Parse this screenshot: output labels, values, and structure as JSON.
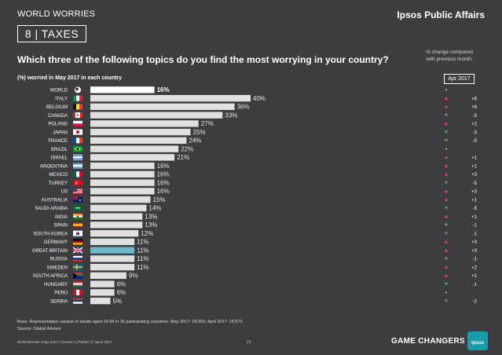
{
  "header": {
    "series_title": "WORLD WORRIES",
    "brand": "Ipsos Public Affairs",
    "topic_number": "8",
    "topic_label": "TAXES",
    "question": "Which three of the following topics do you find the most worrying in your country?",
    "change_note_line1": "% change compared",
    "change_note_line2": "with previous month:",
    "subheading": "(%) worried in May 2017 in each country",
    "comparison_period": "Apr 2017"
  },
  "colors": {
    "background": "#3d3d3f",
    "bar": "#e0e0e0",
    "world_bar": "#ffffff",
    "highlight_bar": "#6fb7cc",
    "up": "#e0475e",
    "down": "#5aa64a",
    "flat": "#c8c8c8"
  },
  "chart_data": {
    "type": "bar",
    "orientation": "horizontal",
    "categories": [
      "WORLD",
      "ITALY",
      "BELGIUM",
      "CANADA",
      "POLAND",
      "JAPAN",
      "FRANCE",
      "BRAZIL",
      "ISRAEL",
      "ARGENTINA",
      "MEXICO",
      "TURKEY",
      "US",
      "AUSTRALIA",
      "SAUDI ARABIA",
      "INDIA",
      "SPAIN",
      "SOUTH KOREA",
      "GERMANY",
      "GREAT BRITAIN",
      "RUSSIA",
      "SWEDEN",
      "SOUTH AFRICA",
      "HUNGARY",
      "PERU",
      "SERBIA"
    ],
    "values": [
      16,
      40,
      36,
      33,
      27,
      25,
      24,
      22,
      21,
      16,
      16,
      16,
      16,
      15,
      14,
      13,
      13,
      12,
      11,
      11,
      11,
      11,
      9,
      6,
      6,
      5
    ],
    "value_labels": [
      "16%",
      "40%",
      "36%",
      "33%",
      "27%",
      "25%",
      "24%",
      "22%",
      "21%",
      "16%",
      "16%",
      "16%",
      "16%",
      "15%",
      "14%",
      "13%",
      "13%",
      "12%",
      "11%",
      "11%",
      "11%",
      "11%",
      "9%",
      "6%",
      "6%",
      "5%"
    ],
    "change_labels": [
      "",
      "+6",
      "+6",
      "-3",
      "+2",
      "-3",
      "-5",
      "",
      "+1",
      "+1",
      "+3",
      "-5",
      "+3",
      "+1",
      "-5",
      "+1",
      "-1",
      "-1",
      "+3",
      "+3",
      "-1",
      "+2",
      "+1",
      "-1",
      "",
      "-2"
    ],
    "change_direction": [
      "flat",
      "up",
      "up",
      "down",
      "up",
      "down",
      "down",
      "flat",
      "up",
      "up",
      "up",
      "down",
      "up",
      "up",
      "down",
      "up",
      "down",
      "down",
      "up",
      "up",
      "down",
      "up",
      "up",
      "down",
      "flat",
      "down"
    ],
    "highlight": [
      "world",
      "normal",
      "normal",
      "normal",
      "normal",
      "normal",
      "normal",
      "normal",
      "normal",
      "normal",
      "normal",
      "normal",
      "normal",
      "normal",
      "normal",
      "normal",
      "normal",
      "normal",
      "normal",
      "highlight",
      "normal",
      "normal",
      "normal",
      "normal",
      "normal",
      "normal"
    ],
    "flag_icons": [
      "globe-icon",
      "italy-flag-icon",
      "belgium-flag-icon",
      "canada-flag-icon",
      "poland-flag-icon",
      "japan-flag-icon",
      "france-flag-icon",
      "brazil-flag-icon",
      "israel-flag-icon",
      "argentina-flag-icon",
      "mexico-flag-icon",
      "turkey-flag-icon",
      "us-flag-icon",
      "australia-flag-icon",
      "saudi-arabia-flag-icon",
      "india-flag-icon",
      "spain-flag-icon",
      "south-korea-flag-icon",
      "germany-flag-icon",
      "great-britain-flag-icon",
      "russia-flag-icon",
      "sweden-flag-icon",
      "south-africa-flag-icon",
      "hungary-flag-icon",
      "peru-flag-icon",
      "serbia-flag-icon"
    ],
    "xlim": [
      0,
      100
    ],
    "grid": false
  },
  "footer": {
    "base_note": "Base: Representative sample of adults aged 16-64 in 26 participating countries. May 2017: 18,550; April 2017: 18,573.",
    "source_note": "Source: Global Advisor",
    "left_text": "World Worries | May 2017 | Version 1 | Public | © Ipsos 2017",
    "page_number": "21",
    "tagline": "GAME CHANGERS",
    "logo_text": "Ipsos"
  }
}
